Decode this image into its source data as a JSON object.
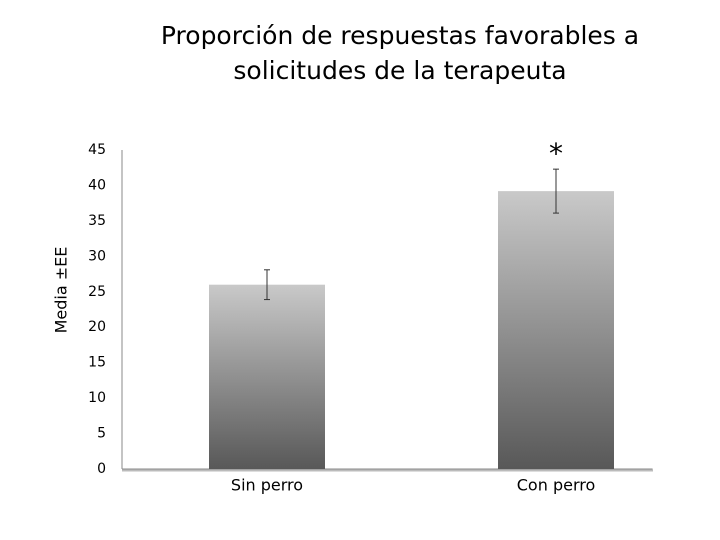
{
  "chart_data": {
    "type": "bar",
    "title": "Proporción de respuestas favorables a solicitudes de la terapeuta",
    "y_label": "Media ±EE",
    "categories": [
      "Sin perro",
      "Con perro"
    ],
    "values": [
      26,
      39.2
    ],
    "errors": [
      2.1,
      3.1
    ],
    "annotation": "*",
    "color": [
      "#c9c9c9",
      "#585858"
    ],
    "ylim": [
      0,
      45
    ],
    "yticks": [
      0,
      5,
      10,
      15,
      20,
      25,
      30,
      35,
      40,
      45
    ],
    "grid": false
  }
}
